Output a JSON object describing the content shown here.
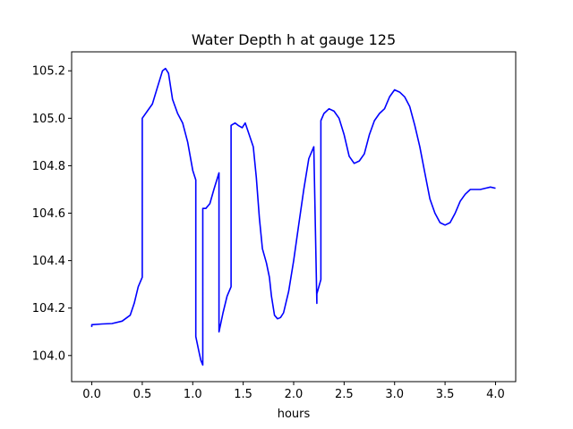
{
  "chart_data": {
    "type": "line",
    "title": "Water Depth h at gauge 125",
    "xlabel": "hours",
    "ylabel": "",
    "xlim": [
      -0.2,
      4.2
    ],
    "ylim": [
      103.89,
      105.28
    ],
    "xticks": [
      0.0,
      0.5,
      1.0,
      1.5,
      2.0,
      2.5,
      3.0,
      3.5,
      4.0
    ],
    "xtick_labels": [
      "0.0",
      "0.5",
      "1.0",
      "1.5",
      "2.0",
      "2.5",
      "3.0",
      "3.5",
      "4.0"
    ],
    "yticks": [
      104.0,
      104.2,
      104.4,
      104.6,
      104.8,
      105.0,
      105.2
    ],
    "ytick_labels": [
      "104.0",
      "104.2",
      "104.4",
      "104.6",
      "104.8",
      "105.0",
      "105.2"
    ],
    "grid": false,
    "legend": "none",
    "series": [
      {
        "name": "",
        "color": "#0000ff",
        "x": [
          0.0,
          0.0,
          0.1,
          0.2,
          0.3,
          0.38,
          0.42,
          0.46,
          0.5,
          0.5,
          0.55,
          0.6,
          0.65,
          0.7,
          0.73,
          0.76,
          0.8,
          0.85,
          0.9,
          0.95,
          1.0,
          1.03,
          1.03,
          1.06,
          1.08,
          1.1,
          1.1,
          1.13,
          1.17,
          1.21,
          1.26,
          1.26,
          1.3,
          1.34,
          1.38,
          1.38,
          1.42,
          1.45,
          1.49,
          1.52,
          1.56,
          1.6,
          1.63,
          1.66,
          1.69,
          1.73,
          1.76,
          1.78,
          1.81,
          1.84,
          1.87,
          1.9,
          1.95,
          2.0,
          2.05,
          2.1,
          2.15,
          2.2,
          2.23,
          2.23,
          2.27,
          2.27,
          2.3,
          2.35,
          2.4,
          2.45,
          2.5,
          2.55,
          2.6,
          2.65,
          2.7,
          2.75,
          2.8,
          2.85,
          2.9,
          2.95,
          3.0,
          3.05,
          3.1,
          3.15,
          3.2,
          3.25,
          3.3,
          3.35,
          3.4,
          3.45,
          3.5,
          3.55,
          3.6,
          3.65,
          3.7,
          3.75,
          3.8,
          3.85,
          3.9,
          3.95,
          4.0
        ],
        "y": [
          104.12,
          104.13,
          104.133,
          104.135,
          104.145,
          104.17,
          104.22,
          104.29,
          104.33,
          105.0,
          105.03,
          105.06,
          105.13,
          105.2,
          105.21,
          105.19,
          105.08,
          105.02,
          104.98,
          104.9,
          104.78,
          104.74,
          104.08,
          104.02,
          103.98,
          103.96,
          104.62,
          104.62,
          104.64,
          104.7,
          104.77,
          104.1,
          104.18,
          104.25,
          104.29,
          104.97,
          104.98,
          104.97,
          104.96,
          104.98,
          104.93,
          104.88,
          104.75,
          104.58,
          104.45,
          104.39,
          104.33,
          104.25,
          104.17,
          104.155,
          104.16,
          104.18,
          104.27,
          104.4,
          104.55,
          104.7,
          104.83,
          104.88,
          104.22,
          104.26,
          104.32,
          104.99,
          105.02,
          105.04,
          105.03,
          105.0,
          104.93,
          104.84,
          104.81,
          104.82,
          104.85,
          104.93,
          104.99,
          105.02,
          105.04,
          105.09,
          105.12,
          105.11,
          105.09,
          105.05,
          104.97,
          104.88,
          104.77,
          104.66,
          104.6,
          104.56,
          104.55,
          104.56,
          104.6,
          104.65,
          104.68,
          104.7,
          104.7,
          104.7,
          104.705,
          104.71,
          104.705
        ]
      }
    ]
  }
}
